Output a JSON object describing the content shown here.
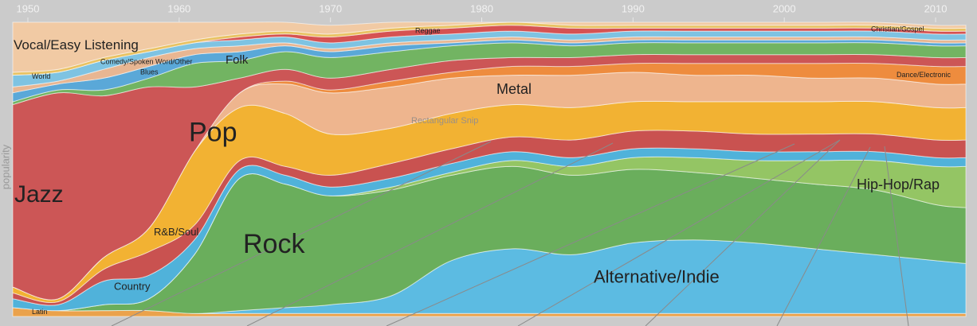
{
  "chart_data": {
    "type": "stream",
    "ylabel": "popularity",
    "annotation": "Rectangular Snip",
    "x": [
      1949,
      1952,
      1955,
      1958,
      1961,
      1964,
      1967,
      1970,
      1974,
      1978,
      1982,
      1986,
      1990,
      1994,
      1998,
      2002,
      2006,
      2010,
      2012
    ],
    "xlim": [
      1949,
      2012
    ],
    "xticks": [
      1950,
      1960,
      1970,
      1980,
      1990,
      2000,
      2010
    ],
    "ylim": [
      0,
      100
    ],
    "series": [
      {
        "name": "Latin",
        "color": "#eaa24c",
        "values": [
          3,
          2,
          2,
          2,
          1,
          1,
          1,
          1,
          1,
          1,
          1,
          1,
          1,
          1,
          1,
          1,
          1,
          1,
          1
        ]
      },
      {
        "name": "Alternative/Indie",
        "color": "#5cbbe2",
        "values": [
          0,
          0,
          0,
          0,
          0,
          1,
          2,
          3,
          6,
          18,
          22,
          20,
          24,
          25,
          24,
          22,
          20,
          18,
          17
        ]
      },
      {
        "name": "Rock",
        "color": "#6aae5c",
        "values": [
          0,
          0,
          2,
          4,
          20,
          45,
          42,
          37,
          36,
          29,
          28,
          27,
          25,
          23,
          22,
          22,
          22,
          19,
          19
        ]
      },
      {
        "name": "Hip-Hop/Rap",
        "color": "#94c564",
        "values": [
          0,
          0,
          0,
          0,
          0,
          0,
          0,
          0,
          1,
          1,
          2,
          3,
          4,
          5,
          6,
          8,
          10,
          13,
          14
        ]
      },
      {
        "name": "Country",
        "color": "#50b2da",
        "values": [
          3,
          2,
          8,
          8,
          5,
          3,
          3,
          3,
          3,
          3,
          3,
          3,
          3,
          3,
          3,
          3,
          3,
          3,
          3
        ]
      },
      {
        "name": "R&B/Soul",
        "color": "#c95250",
        "values": [
          2,
          1,
          4,
          8,
          5,
          3,
          3,
          4,
          5,
          5,
          5,
          6,
          6,
          6,
          6,
          6,
          6,
          6,
          6
        ]
      },
      {
        "name": "Pop",
        "color": "#f2b233",
        "values": [
          2,
          1,
          4,
          8,
          25,
          18,
          18,
          14,
          12,
          12,
          11,
          11,
          10,
          10,
          11,
          11,
          11,
          11,
          11
        ]
      },
      {
        "name": "Metal",
        "color": "#eeb58e",
        "values": [
          0,
          0,
          0,
          0,
          0,
          5,
          10,
          14,
          14,
          12,
          10,
          11,
          10,
          9,
          9,
          8,
          8,
          8,
          8
        ]
      },
      {
        "name": "Dance/Electronic",
        "color": "#ee8c3e",
        "values": [
          0,
          0,
          0,
          0,
          0,
          0,
          1,
          1,
          2,
          2,
          3,
          3,
          3,
          4,
          4,
          5,
          5,
          6,
          6
        ]
      },
      {
        "name": "Jazz",
        "color": "#cc5656",
        "values": [
          62,
          70,
          55,
          48,
          22,
          5,
          4,
          4,
          4,
          4,
          3,
          3,
          3,
          3,
          3,
          3,
          3,
          3,
          3
        ]
      },
      {
        "name": "Folk",
        "color": "#72b462",
        "values": [
          1,
          1,
          2,
          3,
          8,
          6,
          6,
          7,
          6,
          5,
          5,
          4,
          4,
          4,
          4,
          4,
          4,
          4,
          4
        ]
      },
      {
        "name": "Blues",
        "color": "#5aa8d8",
        "values": [
          3,
          2,
          4,
          4,
          3,
          3,
          2,
          2,
          2,
          1,
          1,
          1,
          1,
          1,
          1,
          1,
          1,
          1,
          1
        ]
      },
      {
        "name": "Comedy/Spoken Word/Other",
        "color": "#e8b692",
        "values": [
          2,
          1,
          3,
          3,
          2,
          2,
          1,
          1,
          1,
          1,
          1,
          1,
          1,
          1,
          1,
          1,
          1,
          1,
          1
        ]
      },
      {
        "name": "World",
        "color": "#7ec3e2",
        "values": [
          4,
          3,
          3,
          2,
          2,
          2,
          2,
          2,
          2,
          2,
          2,
          2,
          2,
          2,
          2,
          2,
          2,
          2,
          2
        ]
      },
      {
        "name": "Reggae",
        "color": "#d65252",
        "values": [
          0,
          0,
          0,
          0,
          0,
          1,
          1,
          2,
          2,
          2,
          2,
          2,
          1,
          1,
          1,
          1,
          1,
          1,
          1
        ]
      },
      {
        "name": "Christian/Gospel",
        "color": "#e9c262",
        "values": [
          1,
          1,
          1,
          1,
          1,
          1,
          1,
          1,
          1,
          1,
          1,
          1,
          1,
          1,
          1,
          1,
          1,
          1,
          1
        ]
      },
      {
        "name": "Vocal/Easy Listening",
        "color": "#f1caa4",
        "values": [
          17,
          16,
          12,
          9,
          6,
          4,
          3,
          3,
          2,
          1,
          0,
          1,
          1,
          1,
          1,
          1,
          1,
          1,
          1
        ]
      }
    ]
  }
}
